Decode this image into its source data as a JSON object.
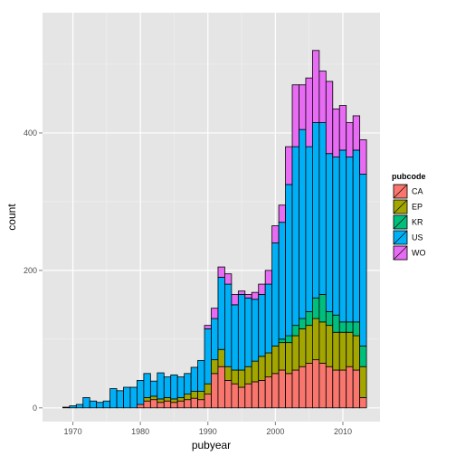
{
  "chart_data": {
    "type": "bar",
    "stacked": true,
    "title": "",
    "xlabel": "pubyear",
    "ylabel": "count",
    "xlim": [
      1965.5,
      2015.5
    ],
    "ylim": [
      -20,
      575
    ],
    "x_ticks": [
      1970,
      1980,
      1990,
      2000,
      2010
    ],
    "y_ticks": [
      0,
      200,
      400
    ],
    "grid": true,
    "legend": {
      "title": "pubcode",
      "position": "right"
    },
    "categories": [
      1969,
      1970,
      1971,
      1972,
      1973,
      1974,
      1975,
      1976,
      1977,
      1978,
      1979,
      1980,
      1981,
      1982,
      1983,
      1984,
      1985,
      1986,
      1987,
      1988,
      1989,
      1990,
      1991,
      1992,
      1993,
      1994,
      1995,
      1996,
      1997,
      1998,
      1999,
      2000,
      2001,
      2002,
      2003,
      2004,
      2005,
      2006,
      2007,
      2008,
      2009,
      2010,
      2011,
      2012,
      2013
    ],
    "series": [
      {
        "name": "CA",
        "color": "#F8766D",
        "values": [
          0,
          0,
          0,
          0,
          0,
          0,
          0,
          0,
          0,
          0,
          0,
          5,
          10,
          12,
          8,
          10,
          8,
          10,
          12,
          14,
          12,
          20,
          50,
          60,
          40,
          35,
          30,
          35,
          38,
          40,
          45,
          50,
          55,
          50,
          55,
          60,
          65,
          70,
          65,
          60,
          55,
          55,
          60,
          55,
          15
        ]
      },
      {
        "name": "EP",
        "color": "#A3A500",
        "values": [
          0,
          0,
          0,
          0,
          0,
          0,
          0,
          0,
          0,
          0,
          0,
          0,
          5,
          5,
          5,
          5,
          5,
          5,
          8,
          10,
          12,
          15,
          20,
          25,
          20,
          20,
          25,
          25,
          30,
          35,
          35,
          40,
          40,
          45,
          50,
          55,
          55,
          60,
          60,
          60,
          55,
          55,
          50,
          50,
          45
        ]
      },
      {
        "name": "KR",
        "color": "#00BF7D",
        "values": [
          0,
          0,
          0,
          0,
          0,
          0,
          0,
          0,
          0,
          0,
          0,
          0,
          0,
          0,
          0,
          0,
          0,
          0,
          0,
          0,
          0,
          0,
          0,
          0,
          0,
          0,
          0,
          0,
          0,
          0,
          0,
          0,
          5,
          10,
          15,
          15,
          20,
          30,
          40,
          20,
          25,
          15,
          15,
          20,
          30
        ]
      },
      {
        "name": "US",
        "color": "#00B0F6",
        "values": [
          1,
          3,
          5,
          15,
          10,
          8,
          10,
          28,
          25,
          30,
          30,
          35,
          35,
          22,
          38,
          30,
          35,
          30,
          30,
          35,
          45,
          80,
          60,
          105,
          120,
          95,
          110,
          100,
          90,
          90,
          100,
          150,
          170,
          220,
          260,
          275,
          240,
          255,
          250,
          230,
          230,
          250,
          240,
          250,
          250
        ]
      },
      {
        "name": "WO",
        "color": "#E76BF3",
        "values": [
          0,
          0,
          0,
          0,
          0,
          0,
          0,
          0,
          0,
          0,
          0,
          0,
          0,
          0,
          0,
          0,
          0,
          0,
          0,
          0,
          0,
          5,
          15,
          15,
          15,
          15,
          5,
          5,
          10,
          15,
          20,
          25,
          25,
          55,
          90,
          65,
          100,
          105,
          75,
          105,
          70,
          65,
          50,
          50,
          50
        ]
      }
    ]
  }
}
